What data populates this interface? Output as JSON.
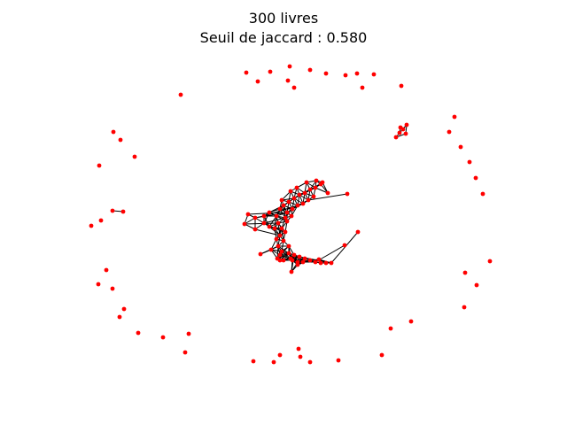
{
  "figure": {
    "title_line1": "300 livres",
    "title_line2": "Seuil de jaccard : 0.580"
  },
  "style": {
    "node_color": "#ff0000",
    "edge_color": "#000000",
    "background": "#ffffff"
  }
}
